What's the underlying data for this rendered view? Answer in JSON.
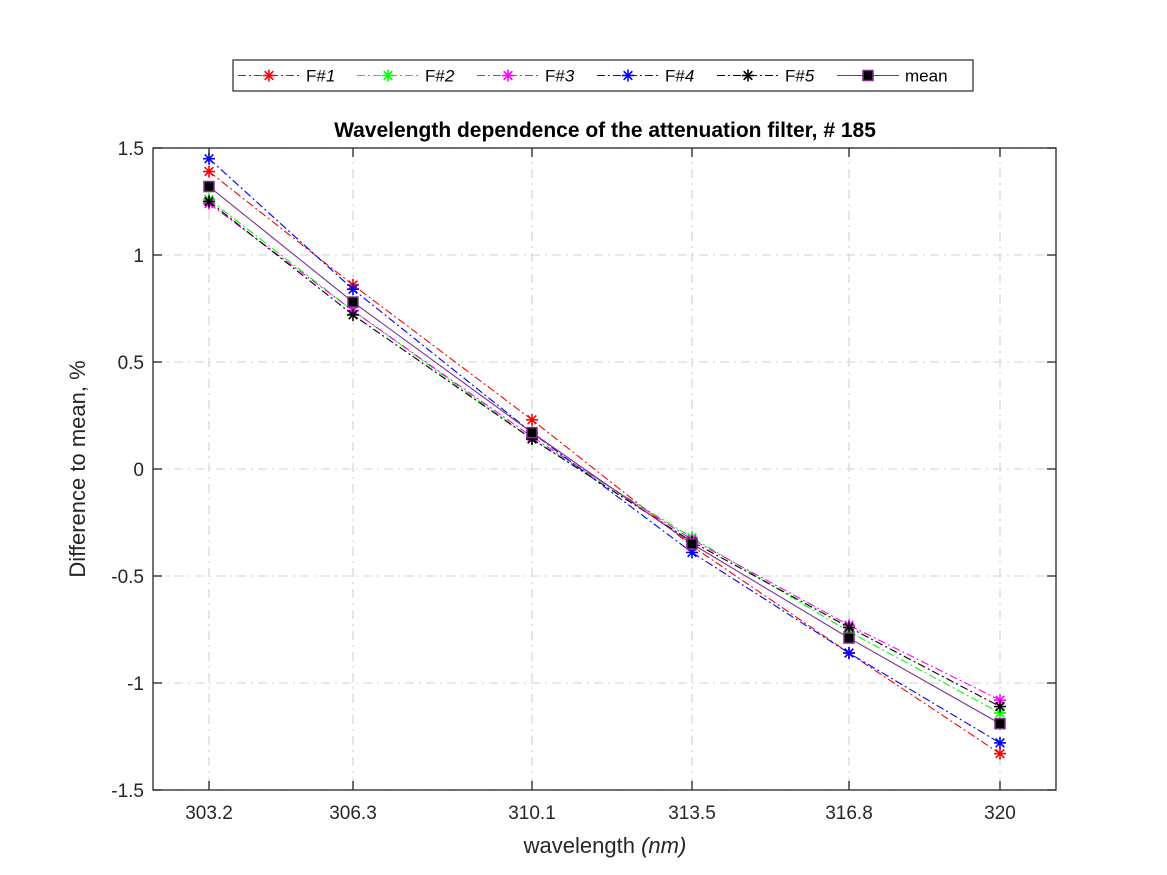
{
  "chart_data": {
    "type": "line",
    "title": "Wavelength dependence of the attenuation filter,  # 185",
    "xlabel": "wavelength",
    "xlabel_unit": "(nm)",
    "ylabel": "Difference to mean, %",
    "x": [
      303.2,
      306.3,
      310.1,
      313.5,
      316.8,
      320
    ],
    "xticklabels": [
      "303.2",
      "306.3",
      "310.1",
      "313.5",
      "316.8",
      "320"
    ],
    "ylim": [
      -1.5,
      1.5
    ],
    "yticks": [
      -1.5,
      -1,
      -0.5,
      0,
      0.5,
      1,
      1.5
    ],
    "yticklabels": [
      "-1.5",
      "-1",
      "-0.5",
      "0",
      "0.5",
      "1",
      "1.5"
    ],
    "grid": true,
    "legend_position": "top-outside",
    "legend_orientation": "horizontal",
    "series": [
      {
        "name": "F#1",
        "color": "#ff0000",
        "marker": "asterisk",
        "line": "dash-dot",
        "values": [
          1.39,
          0.86,
          0.23,
          -0.36,
          -0.86,
          -1.33
        ]
      },
      {
        "name": "F#2",
        "color": "#00ff00",
        "marker": "asterisk",
        "line": "dash-dot",
        "values": [
          1.26,
          0.74,
          0.14,
          -0.32,
          -0.76,
          -1.14
        ]
      },
      {
        "name": "F#3",
        "color": "#ff00ff",
        "marker": "asterisk",
        "line": "dash-dot",
        "values": [
          1.24,
          0.74,
          0.15,
          -0.33,
          -0.73,
          -1.08
        ]
      },
      {
        "name": "F#4",
        "color": "#0000ff",
        "marker": "asterisk",
        "line": "dash-dot",
        "values": [
          1.45,
          0.84,
          0.17,
          -0.39,
          -0.86,
          -1.28
        ]
      },
      {
        "name": "F#5",
        "color": "#000000",
        "marker": "asterisk",
        "line": "dash-dot",
        "values": [
          1.25,
          0.72,
          0.14,
          -0.34,
          -0.74,
          -1.11
        ]
      },
      {
        "name": "mean",
        "color": "#7e2f8e",
        "marker": "square",
        "line": "solid",
        "values": [
          1.32,
          0.78,
          0.17,
          -0.35,
          -0.79,
          -1.19
        ]
      }
    ]
  }
}
